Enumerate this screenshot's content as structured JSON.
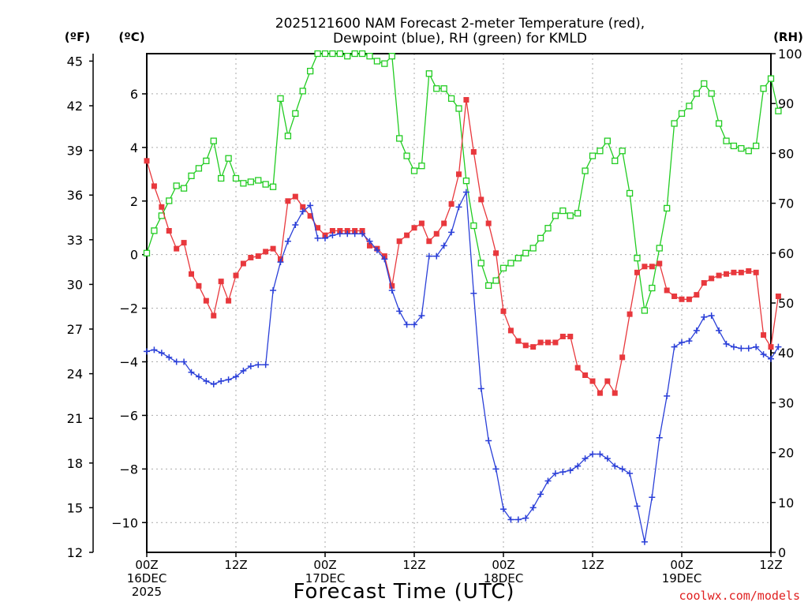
{
  "chart_data": {
    "type": "line",
    "title_lines": [
      "2025121600 NAM Forecast 2-meter Temperature (red),",
      "Dewpoint (blue), RH (green) for KMLD"
    ],
    "xlabel": "Forecast Time (UTC)",
    "credit": "coolwx.com/models",
    "units": {
      "left_f": "(ºF)",
      "left_c": "(ºC)",
      "right": "(RH)"
    },
    "grid": true,
    "x_hours_range": [
      0,
      84
    ],
    "x_ticks": [
      {
        "hour": 0,
        "lines": [
          "00Z",
          "16DEC",
          "2025"
        ]
      },
      {
        "hour": 12,
        "lines": [
          "12Z"
        ]
      },
      {
        "hour": 24,
        "lines": [
          "00Z",
          "17DEC"
        ]
      },
      {
        "hour": 36,
        "lines": [
          "12Z"
        ]
      },
      {
        "hour": 48,
        "lines": [
          "00Z",
          "18DEC"
        ]
      },
      {
        "hour": 60,
        "lines": [
          "12Z"
        ]
      },
      {
        "hour": 72,
        "lines": [
          "00Z",
          "19DEC"
        ]
      },
      {
        "hour": 84,
        "lines": [
          "12Z"
        ]
      }
    ],
    "y_f": {
      "range": [
        12,
        45.5
      ],
      "ticks": [
        12,
        15,
        18,
        21,
        24,
        27,
        30,
        33,
        36,
        39,
        42,
        45
      ]
    },
    "y_c": {
      "ticks": [
        6,
        4,
        2,
        0,
        -2,
        -4,
        -6,
        -8,
        -10
      ],
      "tick_labels": [
        "6",
        "4",
        "2",
        "0",
        "−2",
        "−4",
        "−6",
        "−8",
        "−10"
      ]
    },
    "y_rh": {
      "range": [
        0,
        100
      ],
      "ticks": [
        0,
        10,
        20,
        30,
        40,
        50,
        60,
        70,
        80,
        90,
        100
      ]
    },
    "series": [
      {
        "key": "temperature",
        "unit": "F",
        "color": "#e8383d",
        "marker": "filled-square",
        "values": [
          38.3,
          36.6,
          35.2,
          33.6,
          32.4,
          32.8,
          30.7,
          29.9,
          28.9,
          27.9,
          30.2,
          28.9,
          30.6,
          31.4,
          31.8,
          31.9,
          32.2,
          32.4,
          31.7,
          35.6,
          35.9,
          35.2,
          34.6,
          33.8,
          33.3,
          33.6,
          33.6,
          33.6,
          33.6,
          33.6,
          32.6,
          32.4,
          31.9,
          29.9,
          32.9,
          33.3,
          33.8,
          34.1,
          32.9,
          33.4,
          34.1,
          35.4,
          37.4,
          42.4,
          38.9,
          35.7,
          34.1,
          32.1,
          28.2,
          26.9,
          26.2,
          25.9,
          25.8,
          26.1,
          26.1,
          26.1,
          26.5,
          26.5,
          24.4,
          23.9,
          23.5,
          22.7,
          23.5,
          22.7,
          25.1,
          28.0,
          30.8,
          31.2,
          31.2,
          31.4,
          29.6,
          29.2,
          29.0,
          29.0,
          29.3,
          30.1,
          30.4,
          30.6,
          30.7,
          30.8,
          30.8,
          30.9,
          30.8,
          26.6,
          25.8,
          29.2
        ]
      },
      {
        "key": "dewpoint",
        "unit": "F",
        "color": "#2a3fd8",
        "marker": "plus",
        "values": [
          25.5,
          25.6,
          25.4,
          25.1,
          24.8,
          24.8,
          24.1,
          23.8,
          23.5,
          23.3,
          23.5,
          23.6,
          23.8,
          24.2,
          24.5,
          24.6,
          24.6,
          29.6,
          31.5,
          32.9,
          34.0,
          34.9,
          35.3,
          33.1,
          33.1,
          33.3,
          33.4,
          33.4,
          33.4,
          33.4,
          32.9,
          32.3,
          31.7,
          29.6,
          28.2,
          27.3,
          27.3,
          27.9,
          31.9,
          31.9,
          32.6,
          33.5,
          35.2,
          36.2,
          29.4,
          23.0,
          19.5,
          17.6,
          14.9,
          14.2,
          14.2,
          14.3,
          15.0,
          15.9,
          16.8,
          17.3,
          17.4,
          17.5,
          17.8,
          18.3,
          18.6,
          18.6,
          18.3,
          17.8,
          17.6,
          17.3,
          15.1,
          12.7,
          15.7,
          19.7,
          22.5,
          25.8,
          26.1,
          26.2,
          26.9,
          27.8,
          27.9,
          26.9,
          26.0,
          25.8,
          25.7,
          25.7,
          25.8,
          25.3,
          25.0,
          25.8
        ]
      },
      {
        "key": "relative_humidity",
        "unit": "%",
        "color": "#22cc22",
        "marker": "open-square",
        "values": [
          60,
          64.5,
          67.5,
          70.5,
          73.5,
          73,
          75.5,
          77,
          78.5,
          82.5,
          75,
          79,
          75,
          74,
          74.3,
          74.6,
          73.8,
          73.3,
          91,
          83.5,
          88,
          92.5,
          96.5,
          100,
          100,
          100,
          100,
          99.5,
          100,
          100,
          99.5,
          98.5,
          98,
          99.5,
          83,
          79.5,
          76.5,
          77.5,
          96,
          93,
          93,
          91,
          89,
          74.5,
          65.5,
          58,
          53.5,
          54.5,
          57,
          58,
          59,
          60,
          61,
          63,
          65,
          67.5,
          68.5,
          67.5,
          68,
          76.5,
          79.5,
          80.5,
          82.5,
          78.5,
          80.5,
          72,
          59,
          48.5,
          53,
          61,
          69,
          86,
          88,
          89.5,
          92,
          94,
          92,
          86,
          82.5,
          81.5,
          81,
          80.5,
          81.5,
          93,
          95,
          88.5
        ]
      }
    ]
  }
}
